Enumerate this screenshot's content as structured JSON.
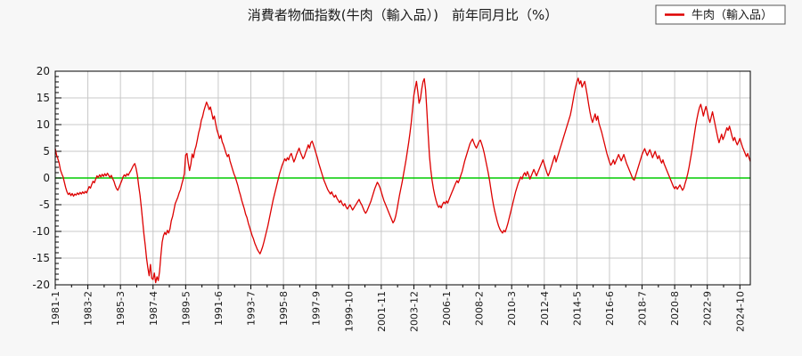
{
  "title": "消費者物価指数(牛肉（輸入品）)　前年同月比（%）",
  "legend": {
    "label": "牛肉（輸入品）",
    "line_color": "#dd0000"
  },
  "colors": {
    "background": "#f7f7f7",
    "plot_background": "#ffffff",
    "plot_border": "#000000",
    "grid": "#c8c8c8",
    "zero_line": "#00cc00",
    "series_line": "#dd0000",
    "legend_border": "#555555"
  },
  "chart_data": {
    "type": "line",
    "title": "消費者物価指数(牛肉（輸入品）)　前年同月比（%）",
    "series_name": "牛肉（輸入品）",
    "unit": "%",
    "x_start": "1981-1",
    "x_frequency": "monthly",
    "x_tick_interval_months": 25,
    "x_tick_labels": [
      "1981-1",
      "1983-2",
      "1985-3",
      "1987-4",
      "1989-5",
      "1991-6",
      "1993-7",
      "1995-8",
      "1997-9",
      "1999-10",
      "2001-11",
      "2003-12",
      "2006-1",
      "2008-2",
      "2010-3",
      "2012-4",
      "2014-5",
      "2016-6",
      "2018-7",
      "2020-8",
      "2022-9",
      "2024-10"
    ],
    "y_ticks": [
      20,
      15,
      10,
      5,
      0,
      -5,
      -10,
      -15,
      -20
    ],
    "ylim": [
      -20,
      20
    ],
    "grid": true,
    "zero_line": true,
    "legend_position": "top-right",
    "values": [
      5.5,
      4.3,
      3.6,
      2.8,
      1.5,
      0.8,
      0.2,
      -0.8,
      -1.8,
      -2.6,
      -3.1,
      -2.8,
      -3.3,
      -2.9,
      -3.4,
      -3.0,
      -3.2,
      -2.8,
      -3.1,
      -2.7,
      -3.0,
      -2.6,
      -2.9,
      -2.5,
      -2.8,
      -2.2,
      -1.6,
      -1.9,
      -1.2,
      -0.6,
      -0.9,
      -0.2,
      0.4,
      0.1,
      0.6,
      0.2,
      0.7,
      0.3,
      0.8,
      0.4,
      0.9,
      0.5,
      0.1,
      0.5,
      -0.1,
      -0.6,
      -1.4,
      -2.0,
      -2.3,
      -1.7,
      -1.1,
      -0.5,
      0.2,
      0.6,
      0.3,
      0.8,
      0.5,
      1.0,
      1.4,
      1.9,
      2.4,
      2.7,
      1.8,
      0.5,
      -1.5,
      -3.2,
      -5.5,
      -8.0,
      -10.5,
      -12.6,
      -15.0,
      -16.8,
      -18.3,
      -16.2,
      -18.8,
      -19.0,
      -17.8,
      -19.6,
      -18.5,
      -19.2,
      -17.5,
      -14.5,
      -12.0,
      -10.8,
      -10.2,
      -10.6,
      -9.8,
      -10.3,
      -9.5,
      -8.0,
      -7.2,
      -6.0,
      -4.8,
      -4.2,
      -3.6,
      -2.8,
      -2.2,
      -1.2,
      -0.3,
      0.8,
      4.3,
      4.6,
      2.8,
      1.4,
      2.6,
      4.5,
      3.8,
      5.2,
      6.0,
      7.2,
      8.5,
      9.4,
      10.8,
      11.5,
      12.6,
      13.4,
      14.2,
      13.6,
      12.8,
      13.3,
      12.2,
      11.0,
      11.6,
      10.2,
      9.0,
      8.2,
      7.4,
      8.0,
      6.8,
      6.2,
      5.4,
      4.6,
      4.0,
      4.4,
      3.2,
      2.4,
      1.6,
      0.8,
      0.2,
      -0.6,
      -1.4,
      -2.4,
      -3.2,
      -4.2,
      -5.0,
      -5.8,
      -6.8,
      -7.4,
      -8.4,
      -9.2,
      -10.0,
      -10.8,
      -11.4,
      -12.2,
      -12.8,
      -13.4,
      -13.8,
      -14.2,
      -13.6,
      -12.9,
      -12.0,
      -11.0,
      -10.0,
      -9.0,
      -7.8,
      -6.6,
      -5.4,
      -4.2,
      -3.2,
      -2.2,
      -1.2,
      -0.2,
      0.8,
      1.6,
      2.4,
      3.0,
      3.6,
      3.2,
      3.8,
      3.4,
      4.2,
      4.6,
      3.8,
      3.0,
      3.6,
      4.4,
      5.0,
      5.6,
      4.8,
      4.2,
      3.6,
      4.0,
      4.8,
      5.4,
      6.2,
      5.6,
      6.6,
      6.9,
      6.2,
      5.4,
      4.6,
      3.8,
      2.8,
      2.0,
      1.2,
      0.4,
      -0.4,
      -1.0,
      -1.6,
      -2.2,
      -2.6,
      -3.0,
      -2.6,
      -3.2,
      -3.6,
      -3.2,
      -3.8,
      -4.2,
      -4.6,
      -4.2,
      -4.8,
      -5.2,
      -4.8,
      -5.4,
      -5.8,
      -5.4,
      -5.0,
      -5.5,
      -6.0,
      -5.6,
      -5.2,
      -4.8,
      -4.4,
      -4.0,
      -4.6,
      -5.0,
      -5.6,
      -6.2,
      -6.6,
      -6.2,
      -5.6,
      -5.0,
      -4.4,
      -3.6,
      -2.8,
      -2.0,
      -1.4,
      -0.8,
      -1.2,
      -1.8,
      -2.6,
      -3.4,
      -4.2,
      -4.8,
      -5.4,
      -6.0,
      -6.6,
      -7.2,
      -7.8,
      -8.4,
      -8.0,
      -7.2,
      -6.0,
      -4.6,
      -3.2,
      -2.0,
      -0.8,
      0.6,
      2.0,
      3.4,
      5.0,
      6.6,
      8.4,
      10.4,
      13.0,
      15.5,
      16.8,
      18.1,
      16.2,
      14.0,
      14.8,
      16.6,
      18.0,
      18.6,
      16.5,
      12.5,
      8.0,
      4.0,
      1.5,
      -0.5,
      -2.0,
      -3.2,
      -4.2,
      -5.0,
      -5.5,
      -5.2,
      -5.6,
      -4.9,
      -4.5,
      -4.8,
      -4.3,
      -4.7,
      -4.0,
      -3.4,
      -2.8,
      -2.2,
      -1.6,
      -1.0,
      -0.5,
      -0.9,
      -0.3,
      0.5,
      1.2,
      2.2,
      3.2,
      4.0,
      4.8,
      5.6,
      6.4,
      6.9,
      7.3,
      6.6,
      6.0,
      5.6,
      6.2,
      6.8,
      7.1,
      6.4,
      5.6,
      4.6,
      3.4,
      2.2,
      1.0,
      -0.4,
      -2.0,
      -3.6,
      -5.0,
      -6.2,
      -7.2,
      -8.2,
      -9.0,
      -9.6,
      -10.0,
      -10.3,
      -9.8,
      -10.1,
      -9.4,
      -8.6,
      -7.6,
      -6.6,
      -5.6,
      -4.6,
      -3.6,
      -2.6,
      -1.8,
      -1.0,
      -0.4,
      0.2,
      -0.2,
      0.6,
      1.0,
      0.4,
      1.2,
      0.6,
      -0.2,
      0.4,
      1.0,
      1.6,
      1.0,
      0.4,
      1.0,
      1.6,
      2.2,
      2.8,
      3.4,
      2.6,
      1.8,
      1.0,
      0.4,
      1.0,
      1.8,
      2.6,
      3.4,
      4.2,
      3.0,
      3.8,
      4.6,
      5.4,
      6.2,
      7.0,
      7.8,
      8.6,
      9.4,
      10.2,
      11.0,
      11.8,
      13.0,
      14.4,
      15.8,
      17.0,
      18.0,
      18.7,
      17.6,
      18.2,
      17.0,
      17.6,
      18.1,
      16.8,
      15.4,
      13.8,
      12.4,
      11.2,
      10.4,
      11.2,
      12.0,
      10.8,
      11.6,
      10.2,
      9.4,
      8.6,
      7.6,
      6.6,
      5.6,
      4.6,
      3.8,
      3.0,
      2.4,
      2.8,
      3.4,
      2.6,
      3.2,
      3.8,
      4.4,
      3.8,
      3.2,
      3.8,
      4.4,
      3.6,
      2.8,
      2.2,
      1.6,
      1.0,
      0.4,
      -0.2,
      -0.4,
      0.4,
      1.2,
      2.0,
      2.8,
      3.6,
      4.4,
      5.0,
      5.5,
      4.8,
      4.2,
      4.8,
      5.3,
      4.6,
      3.8,
      4.4,
      5.0,
      4.2,
      3.6,
      4.2,
      3.4,
      2.8,
      3.4,
      2.6,
      2.0,
      1.4,
      0.8,
      0.2,
      -0.4,
      -1.0,
      -1.6,
      -2.0,
      -1.6,
      -2.1,
      -1.7,
      -1.3,
      -1.8,
      -2.3,
      -1.9,
      -1.0,
      -0.2,
      0.8,
      2.0,
      3.4,
      4.8,
      6.4,
      8.0,
      9.6,
      11.0,
      12.2,
      13.2,
      13.8,
      12.8,
      11.6,
      12.6,
      13.4,
      12.4,
      11.2,
      10.4,
      11.4,
      12.4,
      11.2,
      10.0,
      8.8,
      7.6,
      6.6,
      7.4,
      8.2,
      7.2,
      7.8,
      8.6,
      9.4,
      8.9,
      9.7,
      8.8,
      7.8,
      7.0,
      7.6,
      6.8,
      6.2,
      6.8,
      7.4,
      6.6,
      5.8,
      5.2,
      4.6,
      4.0,
      4.6,
      3.8,
      3.1
    ]
  }
}
